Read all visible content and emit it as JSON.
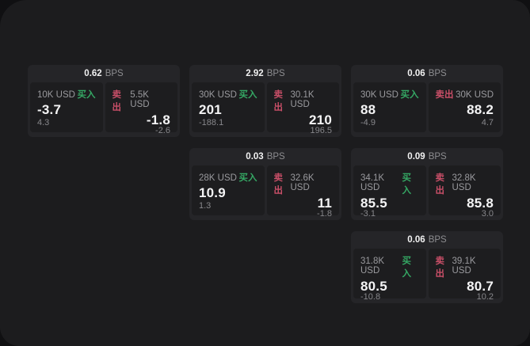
{
  "labels": {
    "bps": "BPS",
    "buy": "买入",
    "sell": "卖出"
  },
  "colors": {
    "buy_accent": "#35a864",
    "sell_accent": "#c94f68",
    "window_bg": "#1c1c1e",
    "card_bg": "#252528",
    "panel_bg": "#1d1d1f"
  },
  "cards": [
    {
      "bps": "0.62",
      "buy": {
        "size": "10K USD",
        "price": "-3.7",
        "change": "4.3"
      },
      "sell": {
        "size": "5.5K USD",
        "price": "-1.8",
        "change": "-2.6"
      }
    },
    {
      "bps": "2.92",
      "buy": {
        "size": "30K USD",
        "price": "201",
        "change": "-188.1"
      },
      "sell": {
        "size": "30.1K USD",
        "price": "210",
        "change": "196.5"
      }
    },
    {
      "bps": "0.06",
      "buy": {
        "size": "30K USD",
        "price": "88",
        "change": "-4.9"
      },
      "sell": {
        "size": "30K USD",
        "price": "88.2",
        "change": "4.7"
      }
    },
    {
      "bps": "0.03",
      "buy": {
        "size": "28K USD",
        "price": "10.9",
        "change": "1.3"
      },
      "sell": {
        "size": "32.6K USD",
        "price": "11",
        "change": "-1.8"
      }
    },
    {
      "bps": "0.09",
      "buy": {
        "size": "34.1K USD",
        "price": "85.5",
        "change": "-3.1"
      },
      "sell": {
        "size": "32.8K USD",
        "price": "85.8",
        "change": "3.0"
      }
    },
    {
      "bps": "0.06",
      "buy": {
        "size": "31.8K USD",
        "price": "80.5",
        "change": "-10.8"
      },
      "sell": {
        "size": "39.1K USD",
        "price": "80.7",
        "change": "10.2"
      }
    }
  ]
}
